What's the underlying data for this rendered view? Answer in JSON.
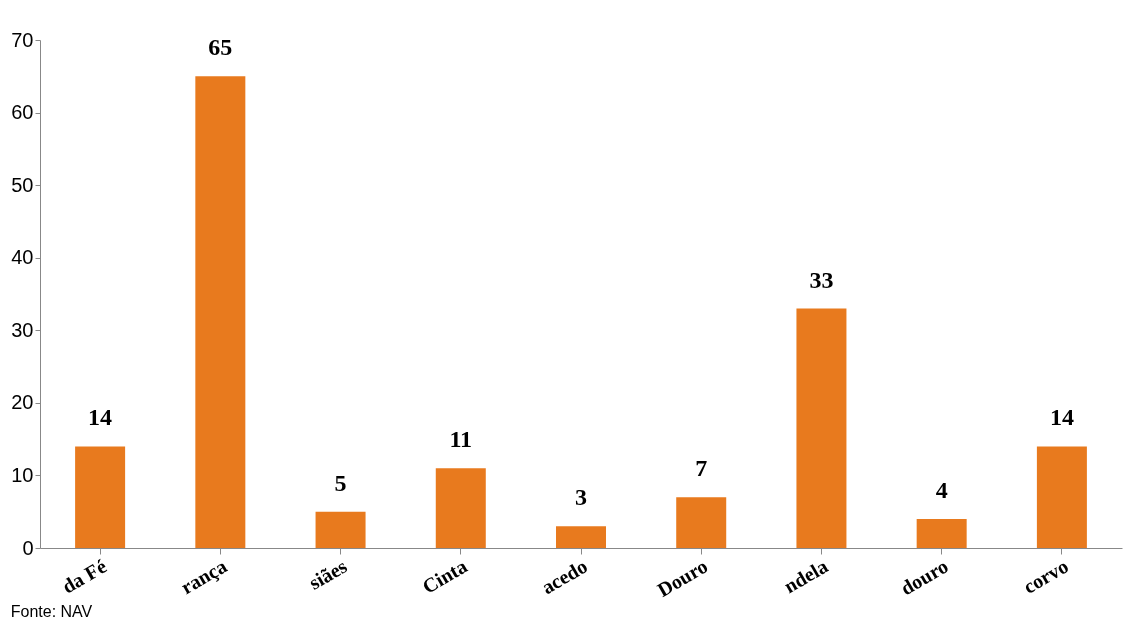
{
  "chart_data": {
    "type": "bar",
    "categories": [
      "da Fé",
      "rança",
      "siães",
      "Cinta",
      "acedo",
      "Douro",
      "ndela",
      "douro",
      "corvo"
    ],
    "values": [
      14,
      65,
      5,
      11,
      3,
      7,
      33,
      4,
      14
    ],
    "color": "#e87a1e",
    "ylim": [
      0,
      70
    ],
    "yticks": [
      0,
      10,
      20,
      30,
      40,
      50,
      60,
      70
    ],
    "grid": false,
    "data_labels": true,
    "annotations": [
      "Fonte: NAV"
    ]
  }
}
